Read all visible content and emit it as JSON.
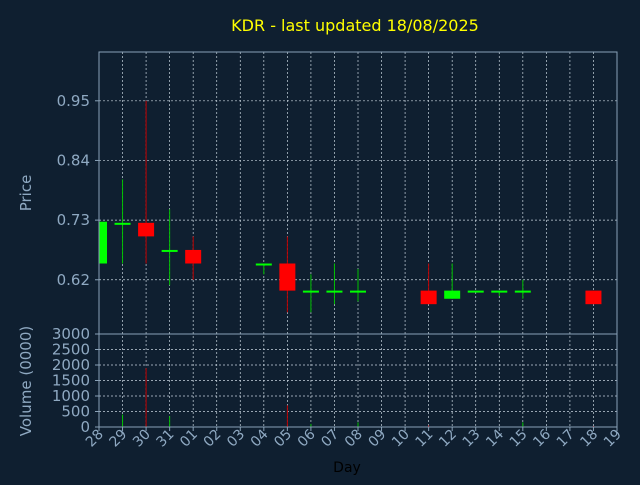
{
  "chart_data": {
    "type": "candlestick",
    "title": "KDR - last updated 18/08/2025",
    "xlabel": "Day",
    "ylabel_price": "Price",
    "ylabel_volume": "Volume (0000)",
    "x_ticks": [
      "28",
      "29",
      "30",
      "31",
      "01",
      "02",
      "03",
      "04",
      "05",
      "06",
      "07",
      "08",
      "09",
      "10",
      "11",
      "12",
      "13",
      "14",
      "15",
      "16",
      "17",
      "18",
      "19"
    ],
    "price_ticks": [
      "0.95",
      "0.84",
      "0.73",
      "0.62"
    ],
    "price_tick_values": [
      0.95,
      0.84,
      0.73,
      0.62
    ],
    "price_range": [
      0.52,
      1.04
    ],
    "volume_ticks": [
      "3000",
      "2500",
      "2000",
      "1500",
      "1000",
      "500",
      "0"
    ],
    "volume_tick_values": [
      3000,
      2500,
      2000,
      1500,
      1000,
      500,
      0
    ],
    "volume_range": [
      0,
      3000
    ],
    "grid": true,
    "candles": [
      {
        "day": "28",
        "open": 0.65,
        "high": 0.727,
        "low": 0.65,
        "close": 0.727,
        "direction": "up"
      },
      {
        "day": "29",
        "open": 0.725,
        "high": 0.805,
        "low": 0.65,
        "close": 0.725,
        "direction": "flat"
      },
      {
        "day": "30",
        "open": 0.725,
        "high": 0.95,
        "low": 0.65,
        "close": 0.7,
        "direction": "down"
      },
      {
        "day": "31",
        "open": 0.675,
        "high": 0.75,
        "low": 0.61,
        "close": 0.675,
        "direction": "flat"
      },
      {
        "day": "01",
        "open": 0.675,
        "high": 0.7,
        "low": 0.62,
        "close": 0.65,
        "direction": "down"
      },
      {
        "day": "04",
        "open": 0.65,
        "high": 0.65,
        "low": 0.63,
        "close": 0.65,
        "direction": "flat"
      },
      {
        "day": "05",
        "open": 0.65,
        "high": 0.7,
        "low": 0.56,
        "close": 0.6,
        "direction": "down"
      },
      {
        "day": "06",
        "open": 0.6,
        "high": 0.63,
        "low": 0.56,
        "close": 0.6,
        "direction": "flat"
      },
      {
        "day": "07",
        "open": 0.6,
        "high": 0.65,
        "low": 0.575,
        "close": 0.6,
        "direction": "flat"
      },
      {
        "day": "08",
        "open": 0.6,
        "high": 0.64,
        "low": 0.58,
        "close": 0.6,
        "direction": "flat"
      },
      {
        "day": "11",
        "open": 0.6,
        "high": 0.65,
        "low": 0.575,
        "close": 0.575,
        "direction": "down"
      },
      {
        "day": "12",
        "open": 0.585,
        "high": 0.65,
        "low": 0.585,
        "close": 0.6,
        "direction": "up"
      },
      {
        "day": "13",
        "open": 0.6,
        "high": 0.6,
        "low": 0.6,
        "close": 0.6,
        "direction": "flat"
      },
      {
        "day": "14",
        "open": 0.6,
        "high": 0.6,
        "low": 0.59,
        "close": 0.6,
        "direction": "flat"
      },
      {
        "day": "15",
        "open": 0.6,
        "high": 0.62,
        "low": 0.585,
        "close": 0.6,
        "direction": "flat"
      },
      {
        "day": "18",
        "open": 0.6,
        "high": 0.6,
        "low": 0.575,
        "close": 0.575,
        "direction": "down"
      }
    ],
    "volumes": [
      {
        "day": "29",
        "volume": 400,
        "direction": "up"
      },
      {
        "day": "30",
        "volume": 1900,
        "direction": "down"
      },
      {
        "day": "31",
        "volume": 350,
        "direction": "up"
      },
      {
        "day": "05",
        "volume": 700,
        "direction": "down"
      },
      {
        "day": "06",
        "volume": 100,
        "direction": "up"
      },
      {
        "day": "08",
        "volume": 150,
        "direction": "up"
      },
      {
        "day": "11",
        "volume": 50,
        "direction": "down"
      },
      {
        "day": "15",
        "volume": 150,
        "direction": "up"
      },
      {
        "day": "18",
        "volume": 30,
        "direction": "down"
      }
    ],
    "colors": {
      "background": "#0f1f30",
      "axis": "#8aa2b8",
      "grid": "#c8d4de",
      "title": "#ffff00",
      "label": "#8fa9c2",
      "up": "#00ff00",
      "down": "#ff0000",
      "up_line": "#00c000",
      "down_line": "#c00000"
    }
  }
}
